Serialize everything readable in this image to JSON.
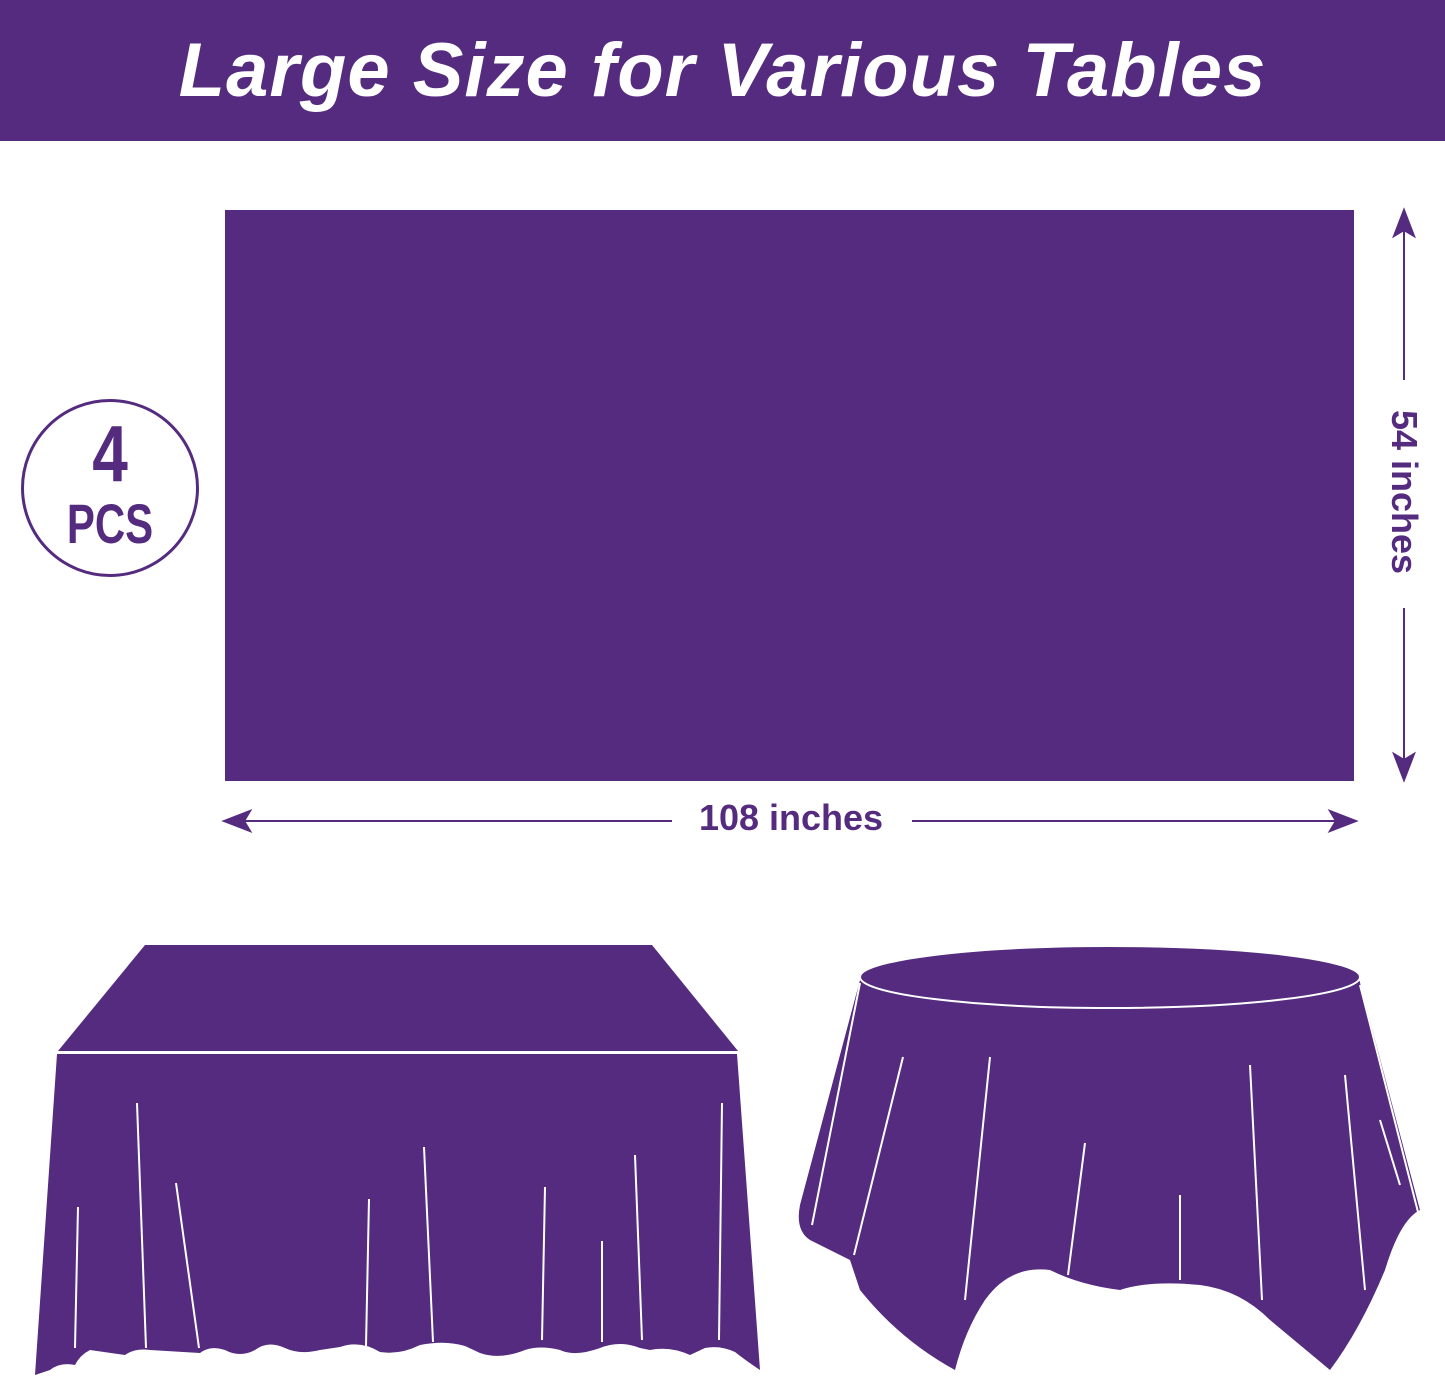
{
  "header": {
    "title": "Large Size for Various Tables"
  },
  "badge": {
    "quantity": "4",
    "unit": "PCS"
  },
  "dimensions": {
    "width_label": "108 inches",
    "height_label": "54 inches"
  },
  "colors": {
    "brand": "#542b7e",
    "background": "#ffffff"
  },
  "illustrations": [
    "rectangular-table-cloth",
    "round-table-cloth"
  ]
}
